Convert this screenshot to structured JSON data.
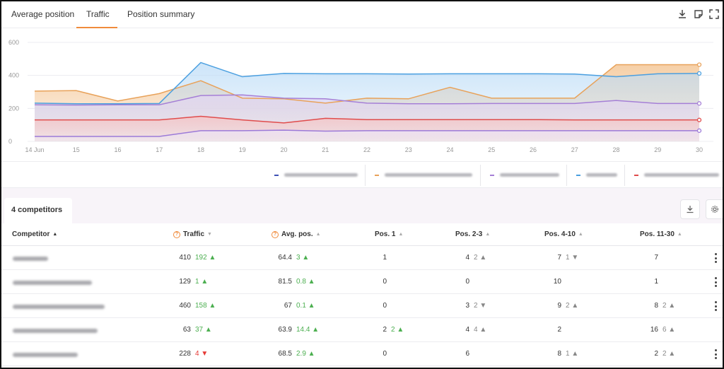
{
  "tabs": [
    {
      "label": "Average position"
    },
    {
      "label": "Traffic"
    },
    {
      "label": "Position summary"
    }
  ],
  "active_tab": "Traffic",
  "toolbar_icons": [
    "download-icon",
    "note-icon",
    "fullscreen-icon"
  ],
  "chart_data": {
    "type": "area",
    "x": [
      "14 Jun",
      "15",
      "16",
      "17",
      "18",
      "19",
      "20",
      "21",
      "22",
      "23",
      "24",
      "25",
      "26",
      "27",
      "28",
      "29",
      "30"
    ],
    "ylim": [
      0,
      600
    ],
    "yticks": [
      "600",
      "400",
      "200",
      "0"
    ],
    "grid": true,
    "series": [
      {
        "color": "#e8a25a",
        "fill": "#f3c08a",
        "values": [
          305,
          308,
          245,
          290,
          368,
          262,
          258,
          232,
          262,
          258,
          328,
          262,
          262,
          262,
          465,
          465,
          465
        ]
      },
      {
        "color": "#4a9fe0",
        "fill": "#bcdcf7",
        "values": [
          232,
          228,
          228,
          230,
          478,
          392,
          412,
          410,
          410,
          408,
          410,
          410,
          410,
          408,
          392,
          410,
          412
        ]
      },
      {
        "color": "#a57fd6",
        "fill": "#e2d4f2",
        "values": [
          222,
          220,
          222,
          222,
          278,
          282,
          262,
          258,
          232,
          228,
          228,
          230,
          230,
          230,
          248,
          230,
          230
        ]
      },
      {
        "color": "#e04c4c",
        "fill": "#f7c2c2",
        "values": [
          130,
          130,
          130,
          130,
          152,
          130,
          112,
          140,
          132,
          132,
          132,
          132,
          132,
          130,
          130,
          130,
          130
        ]
      },
      {
        "color": "#9c7ad8",
        "fill": "#ece4f8",
        "values": [
          30,
          30,
          30,
          30,
          65,
          65,
          68,
          62,
          65,
          65,
          65,
          65,
          65,
          65,
          65,
          65,
          65
        ]
      }
    ]
  },
  "legend": {
    "colors": [
      "#3f51b5",
      "#e8a25a",
      "#a57fd6",
      "#4a9fe0",
      "#e04c4c"
    ]
  },
  "competitors": {
    "title": "4 competitors"
  },
  "table": {
    "headers": {
      "competitor": "Competitor",
      "traffic": "Traffic",
      "avg_pos": "Avg. pos.",
      "pos1": "Pos. 1",
      "pos2_3": "Pos. 2-3",
      "pos4_10": "Pos. 4-10",
      "pos11_30": "Pos. 11-30"
    },
    "rows": [
      {
        "traffic": "410",
        "traffic_d": "192 ▲",
        "traffic_dc": "g",
        "avg": "64.4",
        "avg_d": "3 ▲",
        "avg_dc": "g",
        "p1": "1",
        "p1_d": "",
        "p1_dc": "",
        "p23": "4",
        "p23_d": "2 ▲",
        "p23_dc": "gr",
        "p410": "7",
        "p410_d": "1 ▼",
        "p410_dc": "gr",
        "p1130": "7",
        "p1130_d": "",
        "p1130_dc": "",
        "kebab": true
      },
      {
        "traffic": "129",
        "traffic_d": "1 ▲",
        "traffic_dc": "g",
        "avg": "81.5",
        "avg_d": "0.8 ▲",
        "avg_dc": "g",
        "p1": "0",
        "p1_d": "",
        "p1_dc": "",
        "p23": "0",
        "p23_d": "",
        "p23_dc": "",
        "p410": "10",
        "p410_d": "",
        "p410_dc": "",
        "p1130": "1",
        "p1130_d": "",
        "p1130_dc": "",
        "kebab": true
      },
      {
        "traffic": "460",
        "traffic_d": "158 ▲",
        "traffic_dc": "g",
        "avg": "67",
        "avg_d": "0.1 ▲",
        "avg_dc": "g",
        "p1": "0",
        "p1_d": "",
        "p1_dc": "",
        "p23": "3",
        "p23_d": "2 ▼",
        "p23_dc": "gr",
        "p410": "9",
        "p410_d": "2 ▲",
        "p410_dc": "gr",
        "p1130": "8",
        "p1130_d": "2 ▲",
        "p1130_dc": "gr",
        "kebab": true
      },
      {
        "traffic": "63",
        "traffic_d": "37 ▲",
        "traffic_dc": "g",
        "avg": "63.9",
        "avg_d": "14.4 ▲",
        "avg_dc": "g",
        "p1": "2",
        "p1_d": "2 ▲",
        "p1_dc": "g",
        "p23": "4",
        "p23_d": "4 ▲",
        "p23_dc": "gr",
        "p410": "2",
        "p410_d": "",
        "p410_dc": "",
        "p1130": "16",
        "p1130_d": "6 ▲",
        "p1130_dc": "gr",
        "kebab": false
      },
      {
        "traffic": "228",
        "traffic_d": "4 ▼",
        "traffic_dc": "r",
        "avg": "68.5",
        "avg_d": "2.9 ▲",
        "avg_dc": "g",
        "p1": "0",
        "p1_d": "",
        "p1_dc": "",
        "p23": "6",
        "p23_d": "",
        "p23_dc": "",
        "p410": "8",
        "p410_d": "1 ▲",
        "p410_dc": "gr",
        "p1130": "2",
        "p1130_d": "2 ▲",
        "p1130_dc": "gr",
        "kebab": true
      }
    ]
  }
}
